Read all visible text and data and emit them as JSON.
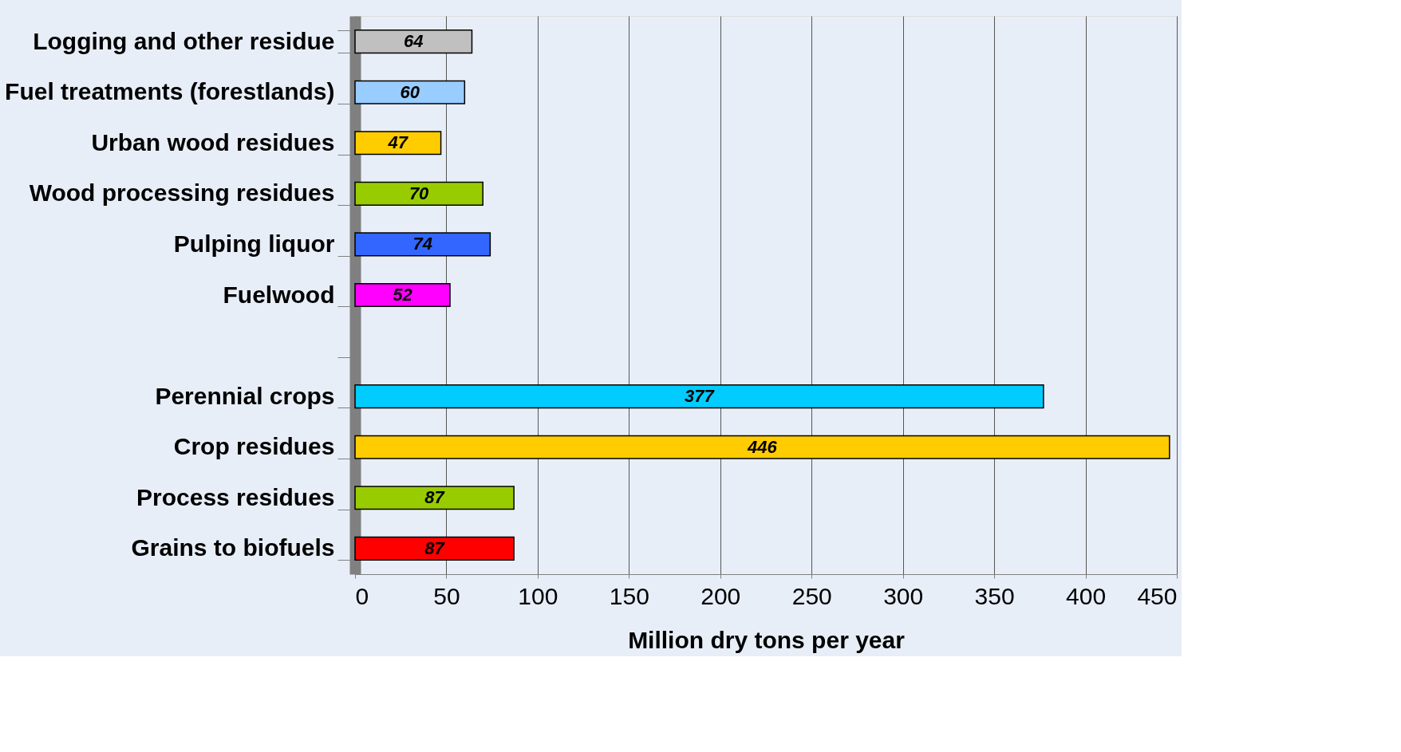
{
  "chart_data": {
    "type": "bar",
    "orientation": "horizontal",
    "xlabel": "Million dry tons per year",
    "categories": [
      "Logging and other residue",
      "Fuel treatments (forestlands)",
      "Urban wood residues",
      "Wood processing residues",
      "Pulping liquor",
      "Fuelwood",
      null,
      "Perennial crops",
      "Crop residues",
      "Process residues",
      "Grains to biofuels"
    ],
    "values": [
      64,
      60,
      47,
      70,
      74,
      52,
      null,
      377,
      446,
      87,
      87
    ],
    "colors": [
      "#c0c0c0",
      "#99ccff",
      "#ffcc00",
      "#99cc00",
      "#3366ff",
      "#ff00ff",
      "#ffffff",
      "#00ccff",
      "#ffcc00",
      "#99cc00",
      "#ff0000"
    ],
    "xlim": [
      0,
      450
    ],
    "xticks": [
      0,
      50,
      100,
      150,
      200,
      250,
      300,
      350,
      400,
      450
    ],
    "grid": "x",
    "data_labels": true
  }
}
